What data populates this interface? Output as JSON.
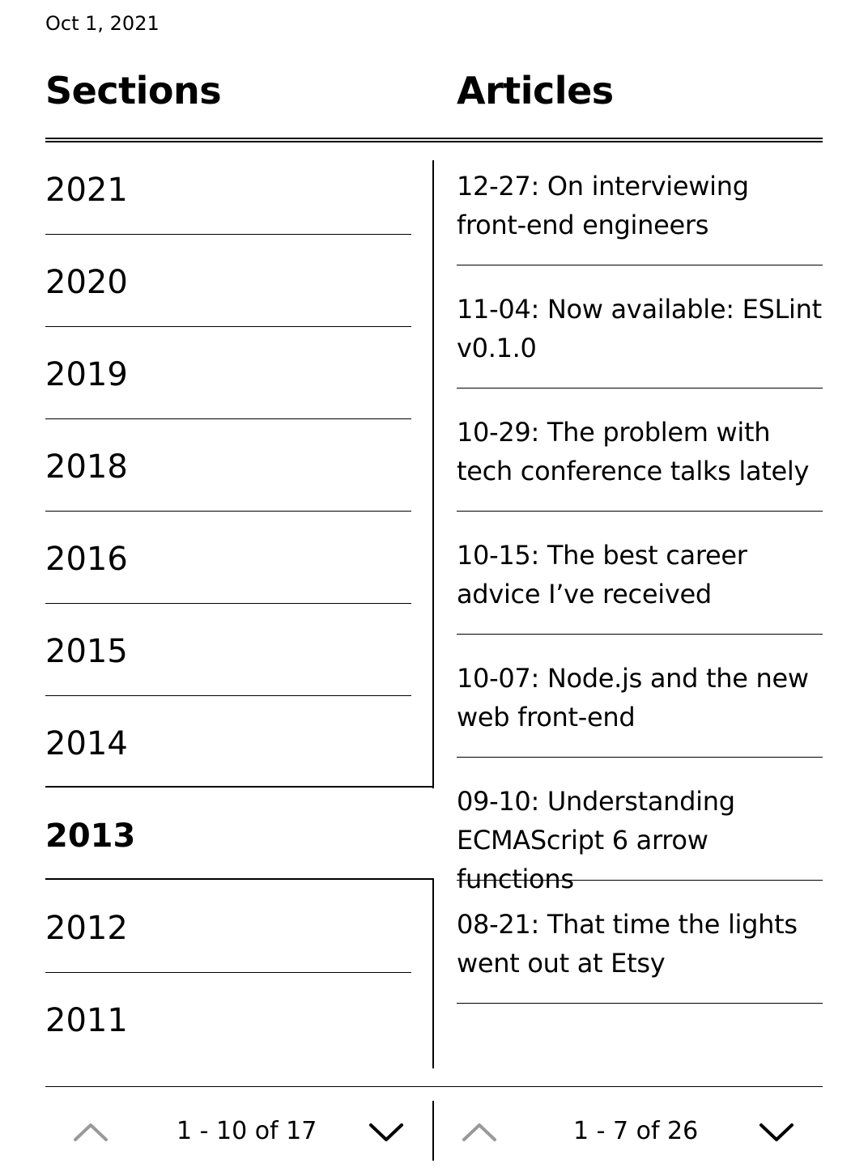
{
  "header": {
    "date": "Oct 1, 2021"
  },
  "sections": {
    "title": "Sections",
    "items": [
      "2021",
      "2020",
      "2019",
      "2018",
      "2016",
      "2015",
      "2014",
      "2013",
      "2012",
      "2011"
    ],
    "selected_index": 7,
    "pager": {
      "range": "1 - 10 of 17"
    }
  },
  "articles": {
    "title": "Articles",
    "items": [
      "12-27: On interviewing front-end engineers",
      "11-04: Now available: ESLint v0.1.0",
      "10-29: The problem with tech conference talks lately",
      "10-15: The best career advice I’ve received",
      "10-07: Node.js and the new web front-end",
      "09-10: Understanding ECMAScript 6 arrow functions",
      "08-21: That time the lights went out at Etsy"
    ],
    "pager": {
      "range": "1 - 7 of 26"
    }
  },
  "icons": {
    "prev": "chevron-up-icon",
    "next": "chevron-down-icon",
    "disabled_color": "#999999",
    "enabled_color": "#000000"
  }
}
